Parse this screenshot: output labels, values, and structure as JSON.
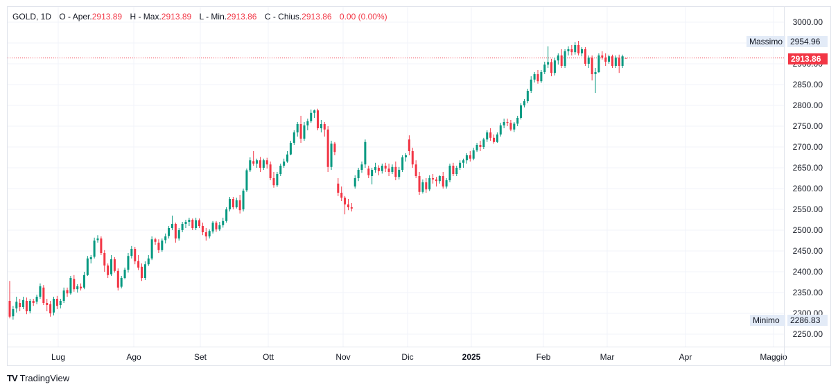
{
  "legend": {
    "symbol": "GOLD, 1D",
    "o_label": "O - Aper.",
    "o_val": "2913.89",
    "h_label": "H - Max.",
    "h_val": "2913.89",
    "l_label": "L - Min.",
    "l_val": "2913.86",
    "c_label": "C - Chius.",
    "c_val": "2913.86",
    "change": "0.00 (0.00%)"
  },
  "branding": {
    "logo": "TV",
    "name": "TradingView"
  },
  "markers": {
    "high_label": "Massimo",
    "high_value": "2954.96",
    "low_label": "Minimo",
    "low_value": "2286.83",
    "last_price": "2913.86"
  },
  "colors": {
    "up": "#089981",
    "down": "#f23645",
    "grid": "#f0f3fa",
    "last": "#f23645"
  },
  "chart_data": {
    "type": "candlestick",
    "y_ticks": [
      "3000.00",
      "2950.00",
      "2900.00",
      "2850.00",
      "2800.00",
      "2750.00",
      "2700.00",
      "2650.00",
      "2600.00",
      "2550.00",
      "2500.00",
      "2450.00",
      "2400.00",
      "2350.00",
      "2300.00",
      "2250.00"
    ],
    "x_ticks": [
      "Lug",
      "Ago",
      "Set",
      "Ott",
      "Nov",
      "Dic",
      "2025",
      "Feb",
      "Mar",
      "Apr",
      "Maggio"
    ],
    "ylim": [
      2215,
      3045
    ],
    "last_price": 2913.86,
    "high": 2954.96,
    "low": 2286.83,
    "ohlc": [
      [
        2330,
        2378,
        2288,
        2292
      ],
      [
        2293,
        2318,
        2285,
        2310
      ],
      [
        2312,
        2340,
        2302,
        2328
      ],
      [
        2325,
        2335,
        2305,
        2315
      ],
      [
        2315,
        2340,
        2310,
        2332
      ],
      [
        2330,
        2338,
        2298,
        2305
      ],
      [
        2305,
        2335,
        2300,
        2330
      ],
      [
        2330,
        2335,
        2318,
        2325
      ],
      [
        2328,
        2345,
        2322,
        2340
      ],
      [
        2340,
        2372,
        2335,
        2365
      ],
      [
        2362,
        2368,
        2320,
        2325
      ],
      [
        2325,
        2335,
        2305,
        2320
      ],
      [
        2322,
        2330,
        2292,
        2300
      ],
      [
        2302,
        2340,
        2295,
        2335
      ],
      [
        2335,
        2342,
        2310,
        2318
      ],
      [
        2320,
        2335,
        2312,
        2330
      ],
      [
        2330,
        2362,
        2325,
        2355
      ],
      [
        2356,
        2362,
        2340,
        2348
      ],
      [
        2348,
        2390,
        2345,
        2385
      ],
      [
        2383,
        2392,
        2352,
        2358
      ],
      [
        2358,
        2370,
        2350,
        2365
      ],
      [
        2364,
        2372,
        2355,
        2360
      ],
      [
        2362,
        2400,
        2358,
        2392
      ],
      [
        2392,
        2438,
        2390,
        2432
      ],
      [
        2430,
        2440,
        2420,
        2435
      ],
      [
        2436,
        2482,
        2432,
        2475
      ],
      [
        2476,
        2488,
        2470,
        2480
      ],
      [
        2480,
        2485,
        2440,
        2445
      ],
      [
        2445,
        2452,
        2400,
        2415
      ],
      [
        2415,
        2420,
        2385,
        2392
      ],
      [
        2394,
        2440,
        2390,
        2430
      ],
      [
        2430,
        2435,
        2398,
        2402
      ],
      [
        2402,
        2408,
        2355,
        2362
      ],
      [
        2364,
        2390,
        2360,
        2385
      ],
      [
        2385,
        2410,
        2382,
        2405
      ],
      [
        2405,
        2445,
        2398,
        2438
      ],
      [
        2438,
        2462,
        2432,
        2455
      ],
      [
        2455,
        2460,
        2418,
        2425
      ],
      [
        2426,
        2440,
        2404,
        2410
      ],
      [
        2412,
        2420,
        2378,
        2385
      ],
      [
        2385,
        2425,
        2380,
        2418
      ],
      [
        2418,
        2440,
        2414,
        2432
      ],
      [
        2432,
        2485,
        2428,
        2478
      ],
      [
        2478,
        2482,
        2465,
        2472
      ],
      [
        2470,
        2478,
        2445,
        2452
      ],
      [
        2452,
        2480,
        2448,
        2475
      ],
      [
        2476,
        2492,
        2468,
        2485
      ],
      [
        2486,
        2510,
        2480,
        2505
      ],
      [
        2505,
        2535,
        2500,
        2515
      ],
      [
        2515,
        2518,
        2470,
        2480
      ],
      [
        2480,
        2505,
        2475,
        2500
      ],
      [
        2500,
        2520,
        2495,
        2515
      ],
      [
        2515,
        2525,
        2505,
        2520
      ],
      [
        2520,
        2530,
        2510,
        2525
      ],
      [
        2525,
        2528,
        2500,
        2505
      ],
      [
        2505,
        2530,
        2500,
        2524
      ],
      [
        2524,
        2528,
        2505,
        2510
      ],
      [
        2510,
        2518,
        2488,
        2495
      ],
      [
        2495,
        2505,
        2475,
        2485
      ],
      [
        2485,
        2502,
        2480,
        2498
      ],
      [
        2497,
        2522,
        2492,
        2518
      ],
      [
        2518,
        2522,
        2496,
        2502
      ],
      [
        2502,
        2520,
        2498,
        2512
      ],
      [
        2512,
        2530,
        2506,
        2522
      ],
      [
        2522,
        2555,
        2518,
        2550
      ],
      [
        2550,
        2580,
        2545,
        2575
      ],
      [
        2575,
        2580,
        2550,
        2555
      ],
      [
        2555,
        2578,
        2552,
        2572
      ],
      [
        2572,
        2585,
        2540,
        2548
      ],
      [
        2550,
        2600,
        2545,
        2595
      ],
      [
        2596,
        2648,
        2592,
        2644
      ],
      [
        2644,
        2675,
        2640,
        2668
      ],
      [
        2666,
        2690,
        2655,
        2660
      ],
      [
        2660,
        2672,
        2650,
        2668
      ],
      [
        2668,
        2676,
        2640,
        2650
      ],
      [
        2650,
        2672,
        2645,
        2668
      ],
      [
        2668,
        2674,
        2648,
        2658
      ],
      [
        2658,
        2665,
        2620,
        2625
      ],
      [
        2625,
        2640,
        2602,
        2608
      ],
      [
        2608,
        2640,
        2604,
        2635
      ],
      [
        2635,
        2660,
        2630,
        2655
      ],
      [
        2655,
        2672,
        2650,
        2665
      ],
      [
        2665,
        2690,
        2662,
        2682
      ],
      [
        2682,
        2715,
        2680,
        2710
      ],
      [
        2710,
        2740,
        2705,
        2735
      ],
      [
        2735,
        2760,
        2725,
        2755
      ],
      [
        2755,
        2775,
        2710,
        2720
      ],
      [
        2720,
        2760,
        2715,
        2752
      ],
      [
        2752,
        2768,
        2740,
        2762
      ],
      [
        2762,
        2790,
        2758,
        2782
      ],
      [
        2782,
        2790,
        2770,
        2788
      ],
      [
        2788,
        2792,
        2740,
        2745
      ],
      [
        2745,
        2765,
        2735,
        2755
      ],
      [
        2755,
        2760,
        2725,
        2742
      ],
      [
        2742,
        2750,
        2640,
        2652
      ],
      [
        2652,
        2715,
        2645,
        2708
      ],
      [
        2708,
        2712,
        2680,
        2688
      ],
      [
        2612,
        2625,
        2582,
        2590
      ],
      [
        2590,
        2605,
        2570,
        2578
      ],
      [
        2578,
        2582,
        2538,
        2562
      ],
      [
        2562,
        2575,
        2548,
        2555
      ],
      [
        2555,
        2565,
        2545,
        2552
      ],
      [
        2605,
        2632,
        2600,
        2625
      ],
      [
        2625,
        2650,
        2618,
        2645
      ],
      [
        2645,
        2665,
        2638,
        2658
      ],
      [
        2658,
        2718,
        2650,
        2712
      ],
      [
        2648,
        2655,
        2625,
        2632
      ],
      [
        2630,
        2650,
        2610,
        2645
      ],
      [
        2645,
        2662,
        2638,
        2652
      ],
      [
        2650,
        2656,
        2632,
        2642
      ],
      [
        2642,
        2660,
        2636,
        2655
      ],
      [
        2655,
        2662,
        2640,
        2648
      ],
      [
        2648,
        2660,
        2630,
        2640
      ],
      [
        2640,
        2658,
        2635,
        2652
      ],
      [
        2652,
        2665,
        2620,
        2628
      ],
      [
        2628,
        2652,
        2622,
        2645
      ],
      [
        2645,
        2680,
        2640,
        2675
      ],
      [
        2675,
        2685,
        2665,
        2680
      ],
      [
        2718,
        2728,
        2680,
        2690
      ],
      [
        2690,
        2698,
        2650,
        2658
      ],
      [
        2658,
        2668,
        2625,
        2630
      ],
      [
        2630,
        2640,
        2585,
        2592
      ],
      [
        2592,
        2622,
        2588,
        2615
      ],
      [
        2615,
        2625,
        2590,
        2598
      ],
      [
        2598,
        2632,
        2594,
        2625
      ],
      [
        2625,
        2635,
        2612,
        2622
      ],
      [
        2622,
        2628,
        2605,
        2618
      ],
      [
        2618,
        2632,
        2612,
        2630
      ],
      [
        2630,
        2640,
        2600,
        2605
      ],
      [
        2605,
        2625,
        2600,
        2620
      ],
      [
        2620,
        2660,
        2615,
        2655
      ],
      [
        2655,
        2662,
        2630,
        2635
      ],
      [
        2635,
        2655,
        2630,
        2650
      ],
      [
        2650,
        2668,
        2645,
        2662
      ],
      [
        2662,
        2672,
        2650,
        2668
      ],
      [
        2668,
        2685,
        2660,
        2680
      ],
      [
        2680,
        2690,
        2665,
        2672
      ],
      [
        2672,
        2698,
        2668,
        2692
      ],
      [
        2692,
        2710,
        2688,
        2705
      ],
      [
        2705,
        2715,
        2690,
        2700
      ],
      [
        2700,
        2722,
        2695,
        2718
      ],
      [
        2718,
        2740,
        2712,
        2735
      ],
      [
        2735,
        2745,
        2715,
        2722
      ],
      [
        2722,
        2730,
        2708,
        2712
      ],
      [
        2712,
        2735,
        2710,
        2730
      ],
      [
        2730,
        2758,
        2725,
        2752
      ],
      [
        2752,
        2768,
        2745,
        2760
      ],
      [
        2760,
        2768,
        2750,
        2758
      ],
      [
        2758,
        2765,
        2738,
        2742
      ],
      [
        2742,
        2760,
        2736,
        2756
      ],
      [
        2756,
        2775,
        2750,
        2770
      ],
      [
        2770,
        2805,
        2766,
        2800
      ],
      [
        2800,
        2815,
        2795,
        2810
      ],
      [
        2810,
        2840,
        2805,
        2835
      ],
      [
        2835,
        2870,
        2830,
        2862
      ],
      [
        2862,
        2880,
        2855,
        2875
      ],
      [
        2875,
        2885,
        2852,
        2858
      ],
      [
        2858,
        2885,
        2854,
        2880
      ],
      [
        2880,
        2905,
        2875,
        2898
      ],
      [
        2898,
        2942,
        2890,
        2904
      ],
      [
        2904,
        2912,
        2870,
        2878
      ],
      [
        2878,
        2915,
        2872,
        2908
      ],
      [
        2908,
        2925,
        2898,
        2920
      ],
      [
        2920,
        2935,
        2890,
        2895
      ],
      [
        2895,
        2935,
        2890,
        2930
      ],
      [
        2930,
        2942,
        2920,
        2935
      ],
      [
        2935,
        2945,
        2920,
        2928
      ],
      [
        2928,
        2952,
        2922,
        2945
      ],
      [
        2945,
        2955,
        2920,
        2925
      ],
      [
        2925,
        2940,
        2918,
        2935
      ],
      [
        2935,
        2940,
        2895,
        2900
      ],
      [
        2900,
        2920,
        2890,
        2915
      ],
      [
        2915,
        2920,
        2860,
        2875
      ],
      [
        2875,
        2890,
        2830,
        2880
      ],
      [
        2880,
        2925,
        2878,
        2920
      ],
      [
        2920,
        2930,
        2910,
        2915
      ],
      [
        2915,
        2925,
        2895,
        2905
      ],
      [
        2905,
        2922,
        2900,
        2918
      ],
      [
        2918,
        2922,
        2890,
        2895
      ],
      [
        2895,
        2920,
        2890,
        2915
      ],
      [
        2915,
        2922,
        2878,
        2895
      ],
      [
        2895,
        2922,
        2890,
        2918
      ],
      [
        2913.89,
        2913.89,
        2913.86,
        2913.86
      ]
    ]
  }
}
